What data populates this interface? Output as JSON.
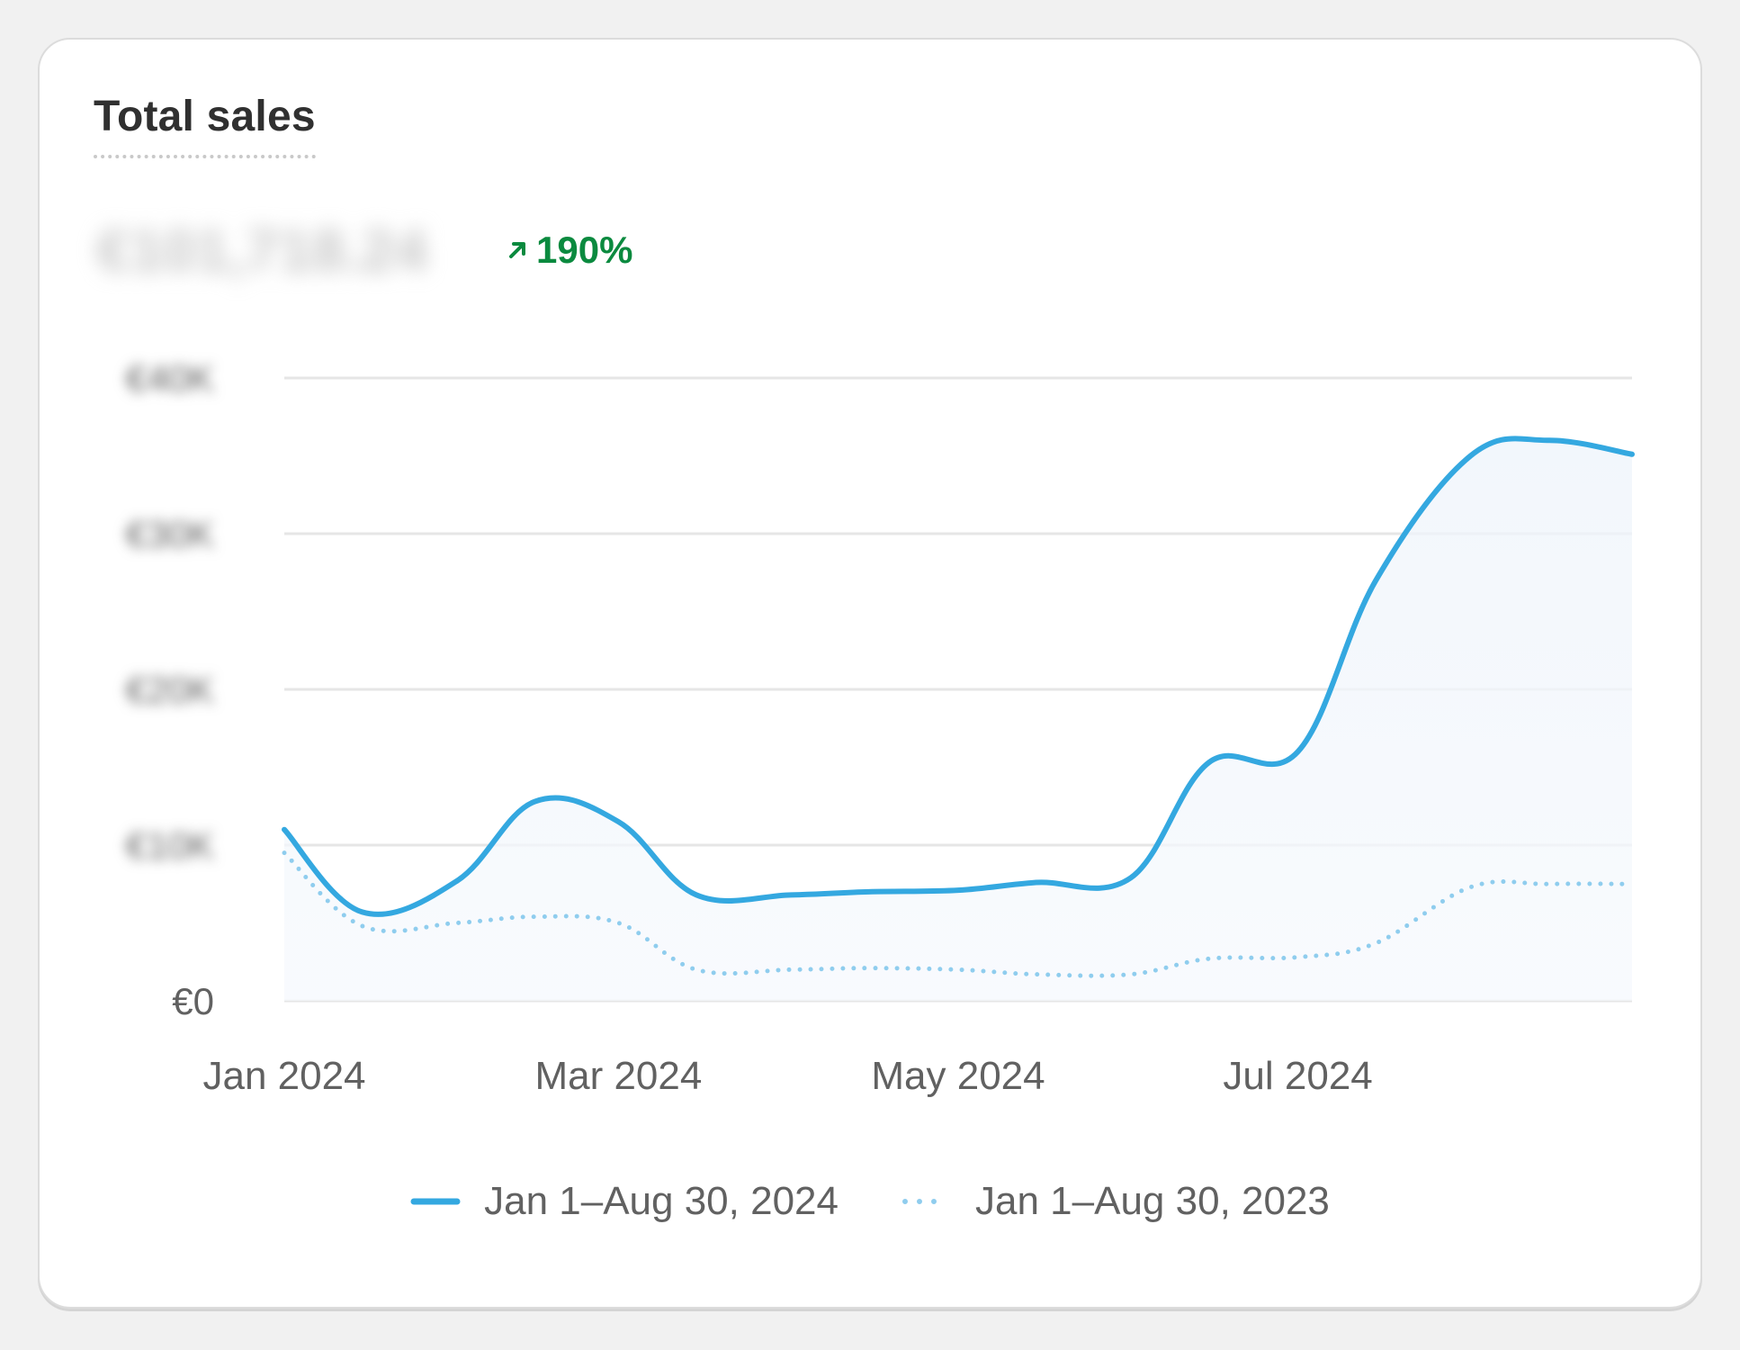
{
  "card": {
    "title": "Total sales",
    "total_value": "€101,718.24",
    "delta": "190%"
  },
  "colors": {
    "current_series": "#34a8e0",
    "previous_series": "#8fcdee",
    "delta_positive": "#0b8a3f",
    "gridline": "#e6e6e6"
  },
  "chart_data": {
    "type": "line",
    "title": "Total sales",
    "y_tick_labels": [
      "€0",
      "€10K",
      "€20K",
      "€30K",
      "€40K"
    ],
    "y_visible_label": "€0",
    "ylim": [
      0,
      40000
    ],
    "x_tick_labels": [
      "Jan 2024",
      "Mar 2024",
      "May 2024",
      "Jul 2024"
    ],
    "x": [
      "2024-01-01",
      "2024-01-15",
      "2024-02-01",
      "2024-02-15",
      "2024-03-01",
      "2024-03-15",
      "2024-04-01",
      "2024-04-15",
      "2024-05-01",
      "2024-05-15",
      "2024-06-01",
      "2024-06-15",
      "2024-07-01",
      "2024-07-15",
      "2024-08-01",
      "2024-08-15",
      "2024-08-30"
    ],
    "series": [
      {
        "name": "Jan 1–Aug 30, 2024",
        "style": "solid",
        "values": [
          11000,
          5700,
          7700,
          12800,
          11500,
          6800,
          6800,
          7000,
          7100,
          7600,
          7900,
          15300,
          16000,
          27000,
          35000,
          36000,
          35100
        ]
      },
      {
        "name": "Jan 1–Aug 30, 2023",
        "style": "dotted",
        "values": [
          9500,
          4800,
          5000,
          5400,
          5000,
          2000,
          2000,
          2100,
          2000,
          1700,
          1700,
          2700,
          2800,
          3700,
          7300,
          7500,
          7500
        ]
      }
    ],
    "grid": true,
    "legend_position": "bottom-center"
  }
}
